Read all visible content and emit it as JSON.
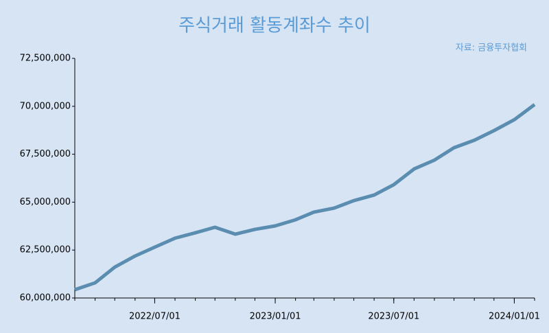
{
  "chart_data": {
    "type": "line",
    "title": "주식거래 활동계좌수 추이",
    "source": "자료: 금융투자협회",
    "x": [
      "2022/03/01",
      "2022/04/01",
      "2022/05/01",
      "2022/06/01",
      "2022/07/01",
      "2022/08/01",
      "2022/09/01",
      "2022/10/01",
      "2022/11/01",
      "2022/12/01",
      "2023/01/01",
      "2023/02/01",
      "2023/03/01",
      "2023/04/01",
      "2023/05/01",
      "2023/06/01",
      "2023/07/01",
      "2023/08/01",
      "2023/09/01",
      "2023/10/01",
      "2023/11/01",
      "2023/12/01",
      "2024/01/01",
      "2024/02/01"
    ],
    "series": [
      {
        "color": "#5b8db0",
        "values": [
          60430000,
          60790000,
          61610000,
          62190000,
          62650000,
          63120000,
          63400000,
          63690000,
          63330000,
          63580000,
          63760000,
          64080000,
          64480000,
          64690000,
          65080000,
          65370000,
          65910000,
          66730000,
          67190000,
          67840000,
          68230000,
          68730000,
          69300000,
          70090000
        ]
      }
    ],
    "xlim": [
      "2022/03/01",
      "2024/02/01"
    ],
    "xticks": [
      "2022/07/01",
      "2023/01/01",
      "2023/07/01",
      "2024/01/01"
    ],
    "ylim": [
      60000000,
      72500000
    ],
    "yticks": [
      {
        "value": 60000000,
        "label": "60,000,000"
      },
      {
        "value": 62500000,
        "label": "62,500,000"
      },
      {
        "value": 65000000,
        "label": "65,000,000"
      },
      {
        "value": 67500000,
        "label": "67,500,000"
      },
      {
        "value": 70000000,
        "label": "70,000,000"
      },
      {
        "value": 72500000,
        "label": "72,500,000"
      }
    ],
    "grid": false
  }
}
